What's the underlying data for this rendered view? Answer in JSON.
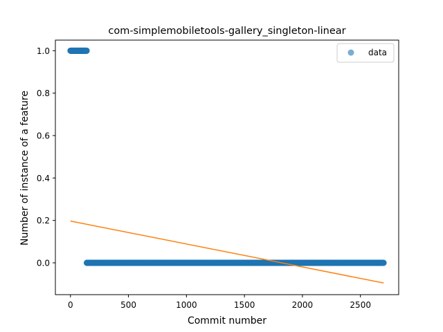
{
  "chart_data": {
    "type": "scatter",
    "title": "com-simplemobiletools-gallery_singleton-linear",
    "xlabel": "Commit number",
    "ylabel": "Number of instance of a feature",
    "xlim": [
      -130,
      2830
    ],
    "ylim": [
      -0.15,
      1.05
    ],
    "xticks": [
      0,
      500,
      1000,
      1500,
      2000,
      2500
    ],
    "yticks": [
      0.0,
      0.2,
      0.4,
      0.6,
      0.8,
      1.0
    ],
    "ytick_labels": [
      "0.0",
      "0.2",
      "0.4",
      "0.6",
      "0.8",
      "1.0"
    ],
    "grid": false,
    "legend": {
      "placement": "top-right",
      "entries": [
        "data"
      ]
    },
    "series": [
      {
        "name": "data",
        "kind": "scatter",
        "color": "#1f77b4",
        "segments": [
          {
            "x_start": 0,
            "x_end": 140,
            "y": 1.0
          },
          {
            "x_start": 141,
            "x_end": 2700,
            "y": 0.0
          }
        ]
      },
      {
        "kind": "line",
        "color": "#ff7f0e",
        "x": [
          0,
          2700
        ],
        "y": [
          0.197,
          -0.095
        ]
      }
    ]
  }
}
